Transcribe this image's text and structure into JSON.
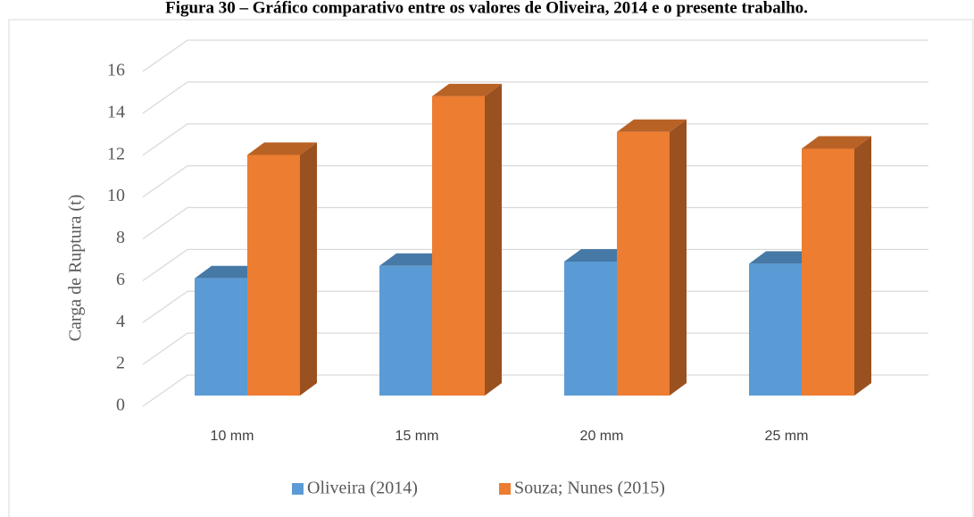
{
  "chart_data": {
    "type": "bar3d",
    "title": "Figura 30 – Gráfico comparativo entre os valores de Oliveira, 2014 e o presente trabalho.",
    "y_label": "Carga de Ruptura (t)",
    "categories": [
      "10 mm",
      "15 mm",
      "20 mm",
      "25 mm"
    ],
    "series": [
      {
        "name": "Oliveira (2014)",
        "color": "#5b9bd5",
        "values": [
          5.6,
          6.2,
          6.4,
          6.3
        ]
      },
      {
        "name": "Souza; Nunes (2015)",
        "color": "#ed7d31",
        "values": [
          11.5,
          14.3,
          12.6,
          11.8
        ]
      }
    ],
    "ylim": [
      0,
      16
    ],
    "yticks": [
      0,
      2,
      4,
      6,
      8,
      10,
      12,
      14,
      16
    ],
    "grid": true,
    "legend": "bottom"
  }
}
